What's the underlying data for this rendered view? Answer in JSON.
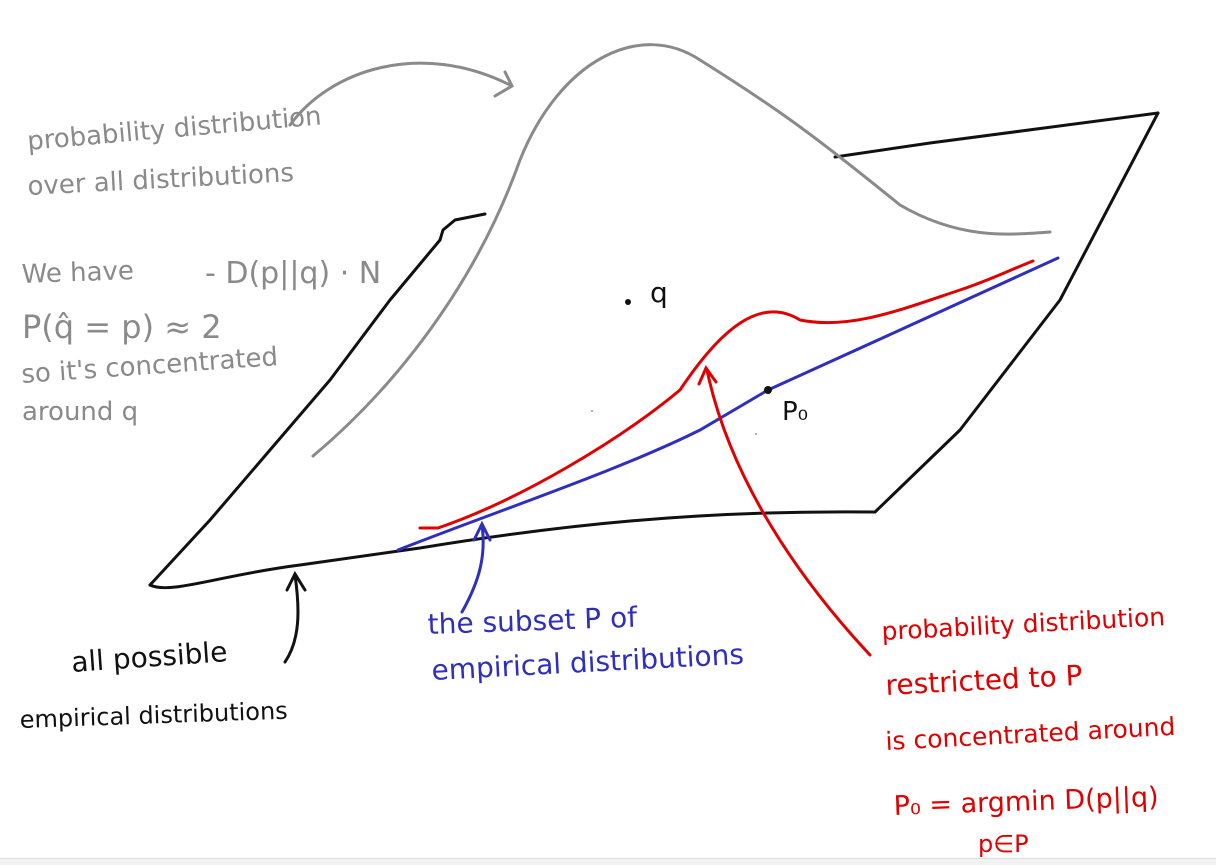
{
  "colors": {
    "ink_black": "#111111",
    "ink_gray": "#8a8a8a",
    "ink_blue": "#2f2fbf",
    "ink_red": "#e00000"
  },
  "gray_note": {
    "line1": "probability distribution",
    "line2": "over all distributions"
  },
  "formula_note": {
    "line1": "We have",
    "exponent": "- D(p||q) · N",
    "line2": "P(q̂ = p) ≈ 2",
    "line3": "so it's concentrated",
    "line4": "around q"
  },
  "points": {
    "q_label": "q",
    "p0_label": "P₀"
  },
  "black_note": {
    "line1": "all possible",
    "line2": "empirical distributions"
  },
  "blue_note": {
    "line1": "the subset P of",
    "line2": "empirical distributions"
  },
  "red_note": {
    "line1": "probability distribution",
    "line2": "restricted to P",
    "line3": "is concentrated around",
    "line4": "P₀ = argmin D(p||q)",
    "line5": "p∈P"
  },
  "icons": {
    "arrow_gray": "curved-arrow-icon",
    "arrow_black": "up-arrow-icon",
    "arrow_blue": "up-arrow-icon",
    "arrow_red": "up-arrow-icon"
  }
}
